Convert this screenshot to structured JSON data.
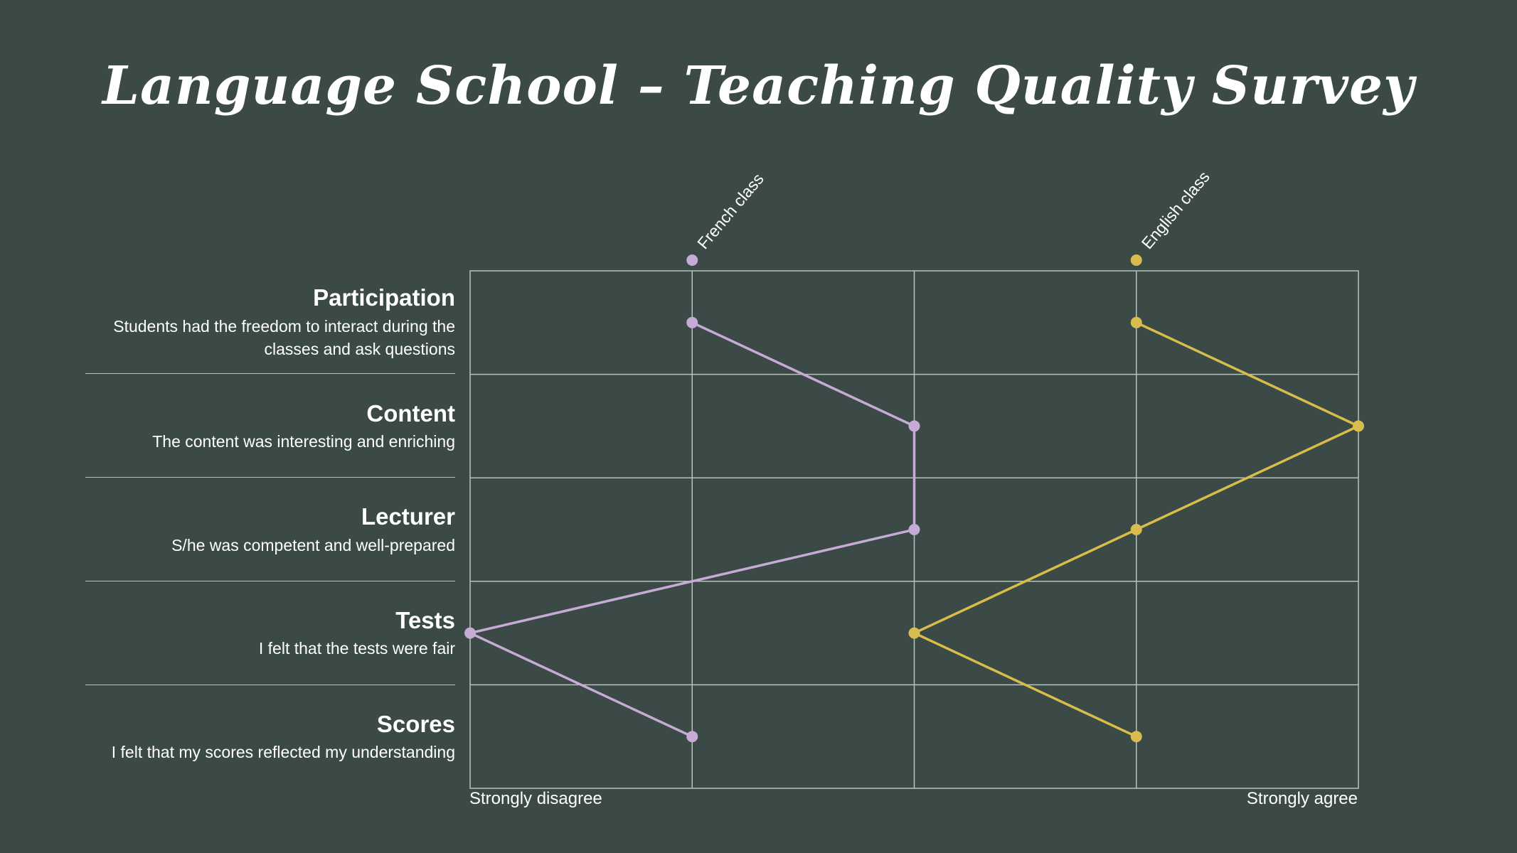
{
  "title": "Language School – Teaching Quality Survey",
  "colors": {
    "background": "#3b4a46",
    "grid": "#b9c2bf",
    "french": "#c6abd6",
    "english": "#d8bc4c"
  },
  "questions": [
    {
      "title": "Participation",
      "description": "Students had the freedom to interact during the classes and ask questions"
    },
    {
      "title": "Content",
      "description": "The content was interesting and enriching"
    },
    {
      "title": "Lecturer",
      "description": "S/he was competent and well-prepared"
    },
    {
      "title": "Tests",
      "description": "I felt that the tests were fair"
    },
    {
      "title": "Scores",
      "description": "I felt that my scores reflected my understanding"
    }
  ],
  "scale": {
    "min_label": "Strongly disagree",
    "max_label": "Strongly agree"
  },
  "chart_data": {
    "type": "line",
    "orientation": "horizontal",
    "categories": [
      "Participation",
      "Content",
      "Lecturer",
      "Tests",
      "Scores"
    ],
    "xlim": [
      1,
      5
    ],
    "x_tick_labels": {
      "1": "Strongly disagree",
      "5": "Strongly agree"
    },
    "grid": true,
    "legend_position": "top",
    "series": [
      {
        "name": "French class",
        "color": "#c6abd6",
        "values": [
          2,
          3,
          3,
          1,
          2
        ]
      },
      {
        "name": "English class",
        "color": "#d8bc4c",
        "values": [
          4,
          5,
          4,
          3,
          4
        ]
      }
    ]
  }
}
